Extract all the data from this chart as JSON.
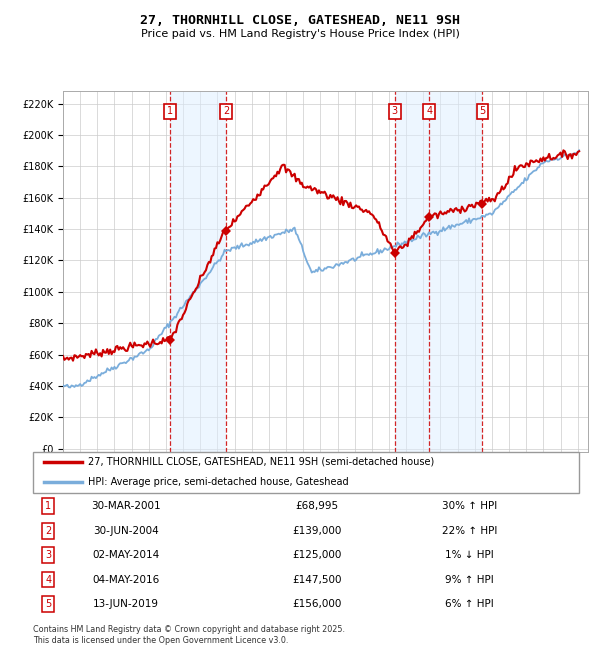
{
  "title": "27, THORNHILL CLOSE, GATESHEAD, NE11 9SH",
  "subtitle": "Price paid vs. HM Land Registry's House Price Index (HPI)",
  "legend_line1": "27, THORNHILL CLOSE, GATESHEAD, NE11 9SH (semi-detached house)",
  "legend_line2": "HPI: Average price, semi-detached house, Gateshead",
  "footer": "Contains HM Land Registry data © Crown copyright and database right 2025.\nThis data is licensed under the Open Government Licence v3.0.",
  "sales": [
    {
      "num": 1,
      "date": "30-MAR-2001",
      "price": 68995,
      "rel": "30% ↑ HPI"
    },
    {
      "num": 2,
      "date": "30-JUN-2004",
      "price": 139000,
      "rel": "22% ↑ HPI"
    },
    {
      "num": 3,
      "date": "02-MAY-2014",
      "price": 125000,
      "rel": "1% ↓ HPI"
    },
    {
      "num": 4,
      "date": "04-MAY-2016",
      "price": 147500,
      "rel": "9% ↑ HPI"
    },
    {
      "num": 5,
      "date": "13-JUN-2019",
      "price": 156000,
      "rel": "6% ↑ HPI"
    }
  ],
  "sale_dates_decimal": [
    2001.25,
    2004.5,
    2014.34,
    2016.34,
    2019.45
  ],
  "sale_prices": [
    68995,
    139000,
    125000,
    147500,
    156000
  ],
  "red_color": "#cc0000",
  "blue_color": "#7aaddb",
  "shade_color": "#ddeeff",
  "ytick_labels": [
    "£0",
    "£20K",
    "£40K",
    "£60K",
    "£80K",
    "£100K",
    "£120K",
    "£140K",
    "£160K",
    "£180K",
    "£200K",
    "£220K"
  ],
  "ytick_values": [
    0,
    20000,
    40000,
    60000,
    80000,
    100000,
    120000,
    140000,
    160000,
    180000,
    200000,
    220000
  ]
}
